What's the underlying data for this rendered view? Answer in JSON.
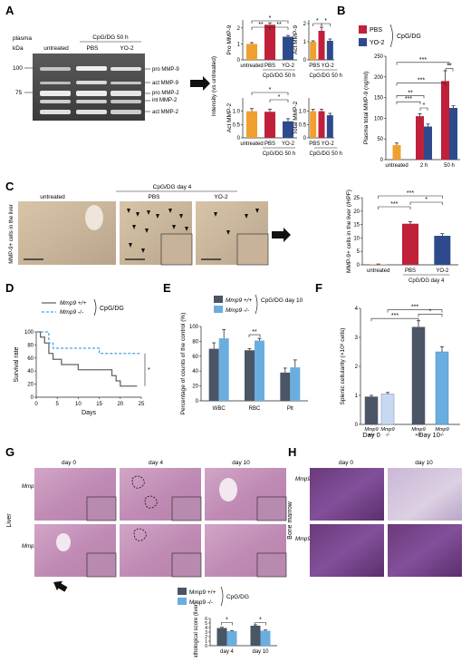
{
  "panels": {
    "A": "A",
    "B": "B",
    "C": "C",
    "D": "D",
    "E": "E",
    "F": "F",
    "G": "G",
    "H": "H"
  },
  "sig": {
    "s1": "*",
    "s2": "**",
    "s3": "***"
  },
  "panelA": {
    "gel": {
      "plasma_label": "plasma",
      "kda_label": "kDa",
      "cond_label": "CpG/DG 50 h",
      "lanes": [
        "untreated",
        "PBS",
        "YO-2"
      ],
      "markers": [
        "100",
        "75"
      ],
      "bands": [
        "pro MMP-9",
        "act MMP-9",
        "pro MMP-2",
        "int MMP-2",
        "act MMP-2"
      ]
    },
    "intensity_label": "Intensity (vs untreated)",
    "group_label": "CpG/DG 50 h"
  },
  "panelB_legend": {
    "items": [
      "PBS",
      "YO-2"
    ],
    "group": "CpG/DG"
  },
  "panelC": {
    "cond_label": "CpG/DG day 4",
    "images": [
      "untreated",
      "PBS",
      "YO-2"
    ],
    "side_label": "MMP-9+ cells in the liver"
  },
  "panelD_legend": {
    "items": [
      "Mmp9 +/+",
      "Mmp9 -/-"
    ],
    "group": "CpG/DG"
  },
  "panelE_legend": {
    "items": [
      "Mmp9 +/+",
      "Mmp9 -/-"
    ],
    "group": "CpG/DG day 10"
  },
  "panelF_groups": {
    "day0": "Day 0",
    "day10": "Day 10",
    "cat_labels": [
      "Mmp9 +/+",
      "Mmp9 -/-",
      "Mmp9 +/+",
      "Mmp9 -/-"
    ]
  },
  "panelG": {
    "days": [
      "day 0",
      "day 4",
      "day 10"
    ],
    "rows": [
      "Mmp9 +/+",
      "Mmp9 - /-"
    ],
    "side": "Liver"
  },
  "panelH": {
    "days": [
      "day 0",
      "day 10"
    ],
    "rows": [
      "Mmp9 +/+",
      "Mmp9 -/-"
    ],
    "side": "Bone marrow"
  },
  "panelG_legend": {
    "items": [
      "Mmp9 +/+",
      "Mmp9 -/-"
    ],
    "group": "CpG/DG"
  },
  "colors": {
    "orange": "#f0a030",
    "red": "#c0203a",
    "blue": "#2e4a8c",
    "dark": "#4a5566",
    "light": "#6aaee0"
  },
  "chart_data": [
    {
      "id": "A1",
      "type": "bar",
      "ylabel": "Pro MMP-9",
      "categories": [
        "untreated",
        "PBS",
        "YO-2"
      ],
      "values": [
        1.0,
        2.2,
        1.45
      ],
      "errors": [
        0.08,
        0.12,
        0.08
      ],
      "ylim": [
        0,
        2.5
      ],
      "yticks": [
        "0",
        "1",
        "2"
      ],
      "xlabel": "CpG/DG 50 h"
    },
    {
      "id": "A2",
      "type": "bar",
      "ylabel": "Act MMP-9",
      "categories": [
        "untreated",
        "PBS",
        "YO-2"
      ],
      "values": [
        1.0,
        1.6,
        1.05
      ],
      "errors": [
        0.05,
        0.2,
        0.1
      ],
      "ylim": [
        0,
        2.2
      ],
      "yticks": [
        "0",
        "1",
        "2"
      ],
      "xlabel": "CpG/DG 50 h"
    },
    {
      "id": "A3",
      "type": "bar",
      "ylabel": "Act MMP-2",
      "categories": [
        "untreated",
        "PBS",
        "YO-2"
      ],
      "values": [
        1.0,
        0.98,
        0.62
      ],
      "errors": [
        0.1,
        0.1,
        0.1
      ],
      "ylim": [
        0,
        1.5
      ],
      "yticks": [
        "0",
        "0.5",
        "1.0"
      ],
      "xlabel": "CpG/DG 50 h"
    },
    {
      "id": "A4",
      "type": "bar",
      "ylabel": "Total MMP-2",
      "categories": [
        "untreated",
        "PBS",
        "YO-2"
      ],
      "values": [
        1.0,
        1.0,
        0.85
      ],
      "errors": [
        0.07,
        0.07,
        0.07
      ],
      "ylim": [
        0,
        1.5
      ],
      "yticks": [
        "0",
        "0.5",
        "1.0"
      ],
      "xlabel": "CpG/DG 50 h"
    },
    {
      "id": "B",
      "type": "bar",
      "ylabel": "Plasma total MMP-9 (ng/ml)",
      "categories": [
        "untreated",
        "2 h",
        "50 h"
      ],
      "series": [
        {
          "name": "PBS",
          "values": [
            35,
            105,
            190
          ]
        },
        {
          "name": "YO-2",
          "values": [
            null,
            80,
            125
          ]
        }
      ],
      "errors": [
        [
          5,
          6,
          25
        ],
        [
          null,
          6,
          5
        ]
      ],
      "ylim": [
        0,
        250
      ],
      "yticks": [
        "0",
        "50",
        "100",
        "150",
        "200",
        "250"
      ]
    },
    {
      "id": "C",
      "type": "bar",
      "ylabel": "MMP-9+ cells in the liver (/HPF)",
      "categories": [
        "untreated",
        "PBS",
        "YO-2"
      ],
      "values": [
        0.2,
        15.3,
        10.8
      ],
      "errors": [
        0.1,
        0.8,
        0.8
      ],
      "ylim": [
        0,
        25
      ],
      "yticks": [
        "0",
        "5",
        "10",
        "15",
        "20",
        "25"
      ],
      "xlabel": "CpG/DG day 4"
    },
    {
      "id": "D",
      "type": "line",
      "ylabel": "Survival rate",
      "xlabel": "Days",
      "xlim": [
        0,
        25
      ],
      "ylim": [
        0,
        100
      ],
      "xticks": [
        "0",
        "5",
        "10",
        "15",
        "20",
        "25"
      ],
      "yticks": [
        "0",
        "20",
        "40",
        "60",
        "80",
        "100"
      ],
      "series": [
        {
          "name": "Mmp9 +/+",
          "x": [
            0,
            1,
            2,
            3,
            4,
            6,
            8,
            10,
            14,
            18,
            19,
            20,
            24
          ],
          "y": [
            100,
            92,
            83,
            67,
            58,
            50,
            50,
            42,
            42,
            33,
            25,
            17,
            17
          ]
        },
        {
          "name": "Mmp9 -/-",
          "x": [
            0,
            3,
            4,
            14,
            15,
            25
          ],
          "y": [
            100,
            83,
            75,
            75,
            67,
            67
          ]
        }
      ]
    },
    {
      "id": "E",
      "type": "bar",
      "ylabel": "Percentage of counts of the control (%)",
      "categories": [
        "WBC",
        "RBC",
        "Plt"
      ],
      "series": [
        {
          "name": "Mmp9 +/+",
          "values": [
            70,
            68,
            38
          ]
        },
        {
          "name": "Mmp9 -/-",
          "values": [
            84,
            81,
            45
          ]
        }
      ],
      "errors": [
        [
          8,
          2,
          6
        ],
        [
          12,
          3,
          10
        ]
      ],
      "ylim": [
        0,
        100
      ],
      "yticks": [
        "0",
        "20",
        "40",
        "60",
        "80",
        "100"
      ]
    },
    {
      "id": "F",
      "type": "bar",
      "ylabel": "Splenic cellularity (×10⁸ cells)",
      "categories": [
        "Mmp9 +/+",
        "Mmp9 -/-",
        "Mmp9 +/+",
        "Mmp9 -/-"
      ],
      "values": [
        0.95,
        1.05,
        3.35,
        2.5
      ],
      "errors": [
        0.05,
        0.05,
        0.22,
        0.18
      ],
      "ylim": [
        0,
        4
      ],
      "yticks": [
        "0",
        "1",
        "2",
        "3",
        "4"
      ]
    },
    {
      "id": "G",
      "type": "bar",
      "ylabel": "Pathological score (liver)",
      "categories": [
        "day 4",
        "day 10"
      ],
      "series": [
        {
          "name": "Mmp9 +/+",
          "values": [
            3.9,
            4.4
          ]
        },
        {
          "name": "Mmp9 -/-",
          "values": [
            3.2,
            3.3
          ]
        }
      ],
      "errors": [
        [
          0.15,
          0.2
        ],
        [
          0.15,
          0.15
        ]
      ],
      "ylim": [
        0,
        6
      ],
      "yticks": [
        "0",
        "1",
        "2",
        "3",
        "4",
        "5",
        "6"
      ]
    }
  ]
}
